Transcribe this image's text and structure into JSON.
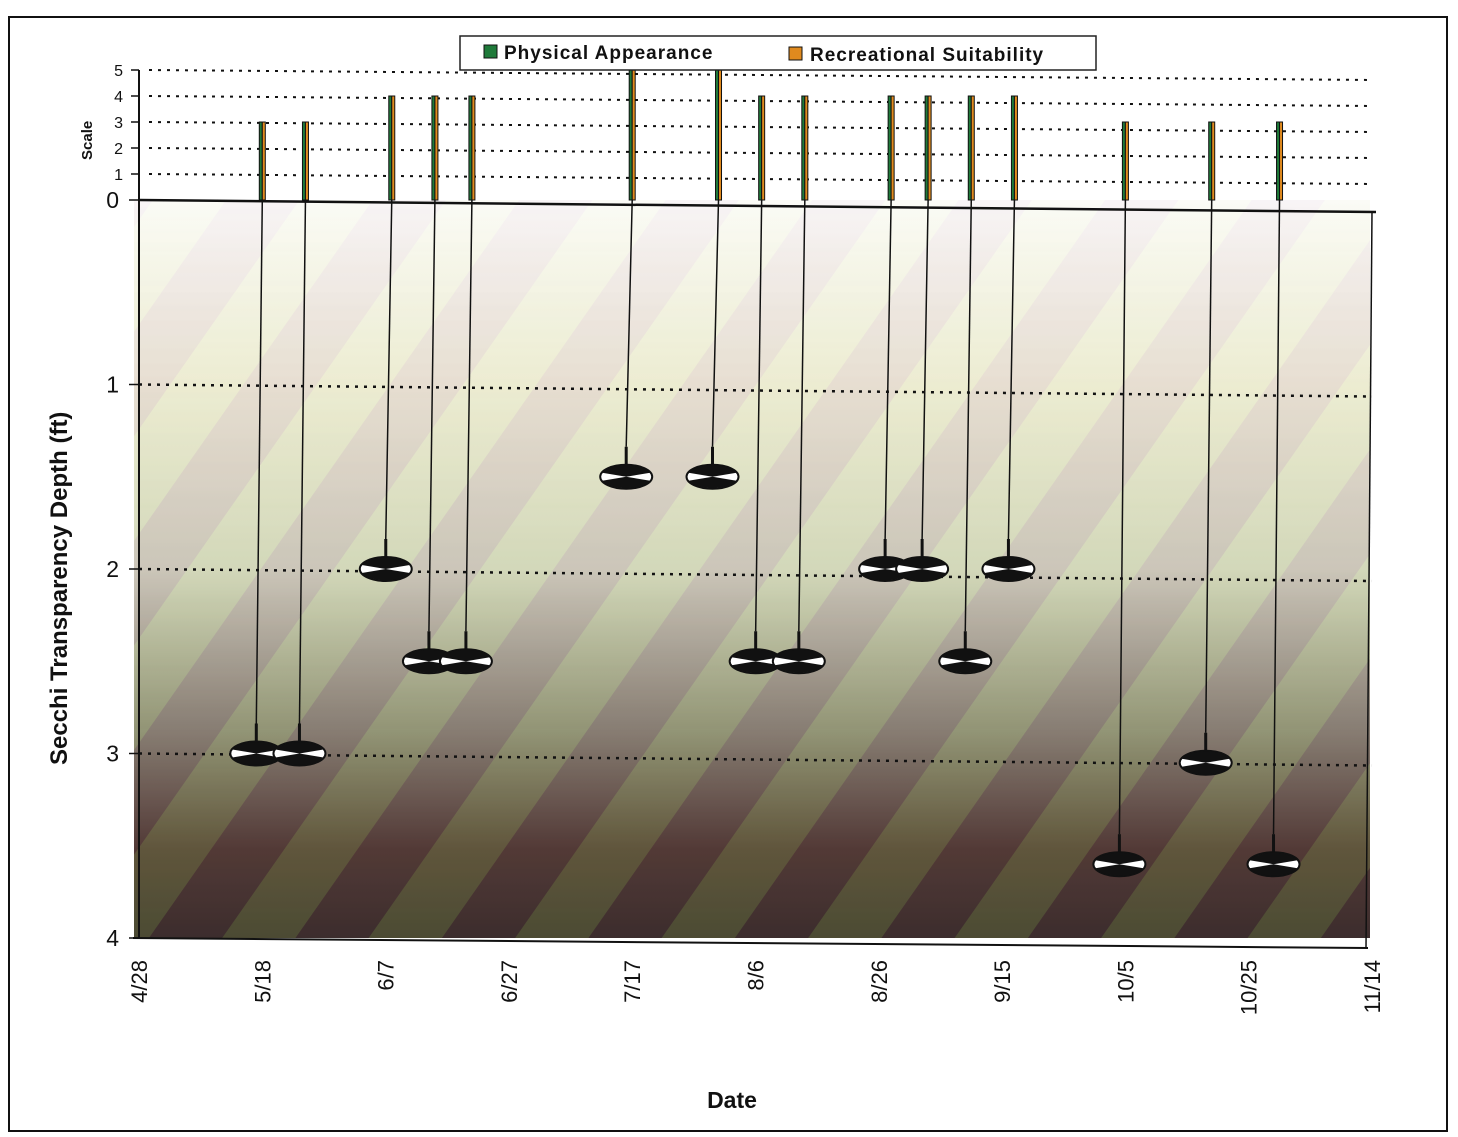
{
  "chart_data": {
    "type": "scatter",
    "title": "",
    "xlabel": "Date",
    "ylabel": "Secchi Transparency Depth (ft)",
    "scale_label": "Scale",
    "x_ticks": [
      "4/28",
      "5/18",
      "6/7",
      "6/27",
      "7/17",
      "8/6",
      "8/26",
      "9/15",
      "10/5",
      "10/25",
      "11/14"
    ],
    "y_ticks": [
      "0",
      "1",
      "2",
      "3",
      "4"
    ],
    "scale_ticks": [
      "0",
      "1",
      "2",
      "3",
      "4",
      "5"
    ],
    "ylim": [
      0,
      4
    ],
    "scale_lim": [
      0,
      5
    ],
    "grid": "dotted horizontal",
    "legend_position": "top-center",
    "colors": {
      "physical": "#1f7a3a",
      "recreational": "#e08a1e",
      "line": "#111111"
    },
    "legend": [
      {
        "label": "Physical Appearance",
        "color": "#1f7a3a"
      },
      {
        "label": "Recreational Suitability",
        "color": "#e08a1e"
      }
    ],
    "series": [
      {
        "name": "Secchi Transparency Depth (ft)",
        "field": "depth"
      },
      {
        "name": "Physical Appearance",
        "field": "physical"
      },
      {
        "name": "Recreational Suitability",
        "field": "recreational"
      }
    ],
    "points": [
      {
        "date": "5/18",
        "depth": 3.0,
        "physical": 3,
        "recreational": 3
      },
      {
        "date": "5/25",
        "depth": 3.0,
        "physical": 3,
        "recreational": 3
      },
      {
        "date": "6/8",
        "depth": 2.0,
        "physical": 4,
        "recreational": 4
      },
      {
        "date": "6/15",
        "depth": 2.5,
        "physical": 4,
        "recreational": 4
      },
      {
        "date": "6/21",
        "depth": 2.5,
        "physical": 4,
        "recreational": 4
      },
      {
        "date": "7/17",
        "depth": 1.5,
        "physical": 5,
        "recreational": 5
      },
      {
        "date": "7/31",
        "depth": 1.5,
        "physical": 5,
        "recreational": 5
      },
      {
        "date": "8/7",
        "depth": 2.5,
        "physical": 4,
        "recreational": 4
      },
      {
        "date": "8/14",
        "depth": 2.5,
        "physical": 4,
        "recreational": 4
      },
      {
        "date": "8/28",
        "depth": 2.0,
        "physical": 4,
        "recreational": 4
      },
      {
        "date": "9/3",
        "depth": 2.0,
        "physical": 4,
        "recreational": 4
      },
      {
        "date": "9/10",
        "depth": 2.5,
        "physical": 4,
        "recreational": 4
      },
      {
        "date": "9/17",
        "depth": 2.0,
        "physical": 4,
        "recreational": 4
      },
      {
        "date": "10/5",
        "depth": 3.6,
        "physical": 3,
        "recreational": 3
      },
      {
        "date": "10/19",
        "depth": 3.05,
        "physical": 3,
        "recreational": 3
      },
      {
        "date": "10/30",
        "depth": 3.6,
        "physical": 3,
        "recreational": 3
      }
    ]
  }
}
